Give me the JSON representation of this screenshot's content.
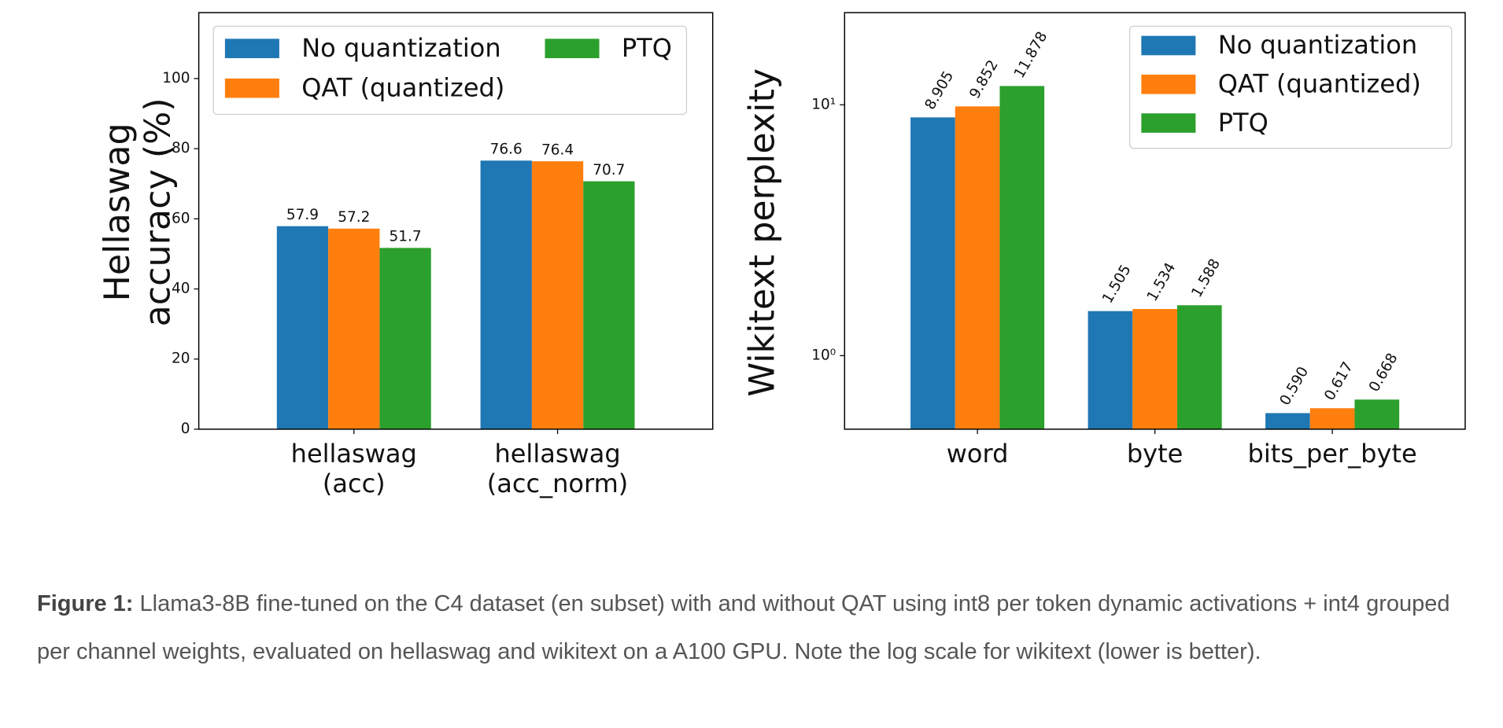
{
  "chart_data": [
    {
      "type": "bar",
      "ylabel": "Hellaswag\naccuracy (%)",
      "categories": [
        "hellaswag\n(acc)",
        "hellaswag\n(acc_norm)"
      ],
      "series": [
        {
          "name": "No quantization",
          "color": "#1f77b4",
          "values": [
            57.9,
            76.6
          ]
        },
        {
          "name": "QAT (quantized)",
          "color": "#ff7f0e",
          "values": [
            57.2,
            76.4
          ]
        },
        {
          "name": "PTQ",
          "color": "#2ca02c",
          "values": [
            51.7,
            70.7
          ]
        }
      ],
      "ylim": [
        0,
        118.8
      ],
      "yticks": [
        0,
        20,
        40,
        60,
        80,
        100
      ],
      "log_scale": false,
      "legend": "upper left",
      "legend_ncol": 2,
      "label_rotation": 0
    },
    {
      "type": "bar",
      "ylabel": "Wikitext perplexity",
      "categories": [
        "word",
        "byte",
        "bits_per_byte"
      ],
      "series": [
        {
          "name": "No quantization",
          "color": "#1f77b4",
          "values": [
            8.905,
            1.505,
            0.59
          ],
          "value_labels": [
            "8.905",
            "1.505",
            "0.590"
          ]
        },
        {
          "name": "QAT (quantized)",
          "color": "#ff7f0e",
          "values": [
            9.852,
            1.534,
            0.617
          ],
          "value_labels": [
            "9.852",
            "1.534",
            "0.617"
          ]
        },
        {
          "name": "PTQ",
          "color": "#2ca02c",
          "values": [
            11.878,
            1.588,
            0.668
          ],
          "value_labels": [
            "11.878",
            "1.588",
            "0.668"
          ]
        }
      ],
      "ylim": [
        0.509,
        23.3
      ],
      "yticks": [
        {
          "value": 1,
          "label": "10⁰"
        },
        {
          "value": 10,
          "label": "10¹"
        }
      ],
      "log_scale": true,
      "legend": "upper right",
      "legend_ncol": 1,
      "label_rotation": -60
    }
  ],
  "caption": {
    "label": "Figure 1:",
    "text": "Llama3-8B fine-tuned on the C4 dataset (en subset) with and without QAT using int8 per token dynamic activations + int4 grouped per channel weights, evaluated on hellaswag and wikitext on a A100 GPU. Note the log scale for wikitext (lower is better)."
  }
}
